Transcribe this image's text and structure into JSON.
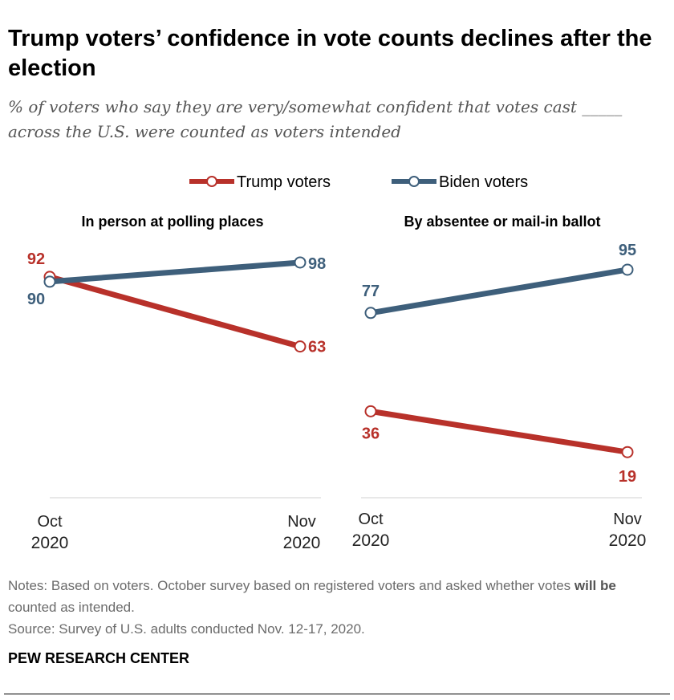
{
  "title": "Trump voters’ confidence in vote counts declines after the election",
  "subtitle": "% of voters who say they are very/somewhat confident that votes cast _____ across the U.S. were counted as voters intended",
  "colors": {
    "trump": "#b8312a",
    "biden": "#3e5f7b"
  },
  "chart_data": [
    {
      "type": "line",
      "title": "In person at polling places",
      "categories": [
        "Oct 2020",
        "Nov 2020"
      ],
      "series": [
        {
          "name": "Trump voters",
          "values": [
            92,
            63
          ]
        },
        {
          "name": "Biden voters",
          "values": [
            90,
            98
          ]
        }
      ],
      "ylim": [
        0,
        100
      ],
      "legend": "top-center",
      "grid": false
    },
    {
      "type": "line",
      "title": "By absentee or mail-in ballot",
      "categories": [
        "Oct 2020",
        "Nov 2020"
      ],
      "series": [
        {
          "name": "Trump voters",
          "values": [
            36,
            19
          ]
        },
        {
          "name": "Biden voters",
          "values": [
            77,
            95
          ]
        }
      ],
      "ylim": [
        0,
        100
      ],
      "legend": "top-center",
      "grid": false
    }
  ],
  "legend": [
    "Trump voters",
    "Biden voters"
  ],
  "xlabels": [
    [
      "Oct",
      "2020"
    ],
    [
      "Nov",
      "2020"
    ]
  ],
  "notes_pre": "Notes: Based on voters. October survey based on registered voters and asked whether votes ",
  "notes_bold": "will be",
  "notes_post": " counted as intended.",
  "source": "Source: Survey of U.S. adults conducted Nov. 12-17, 2020.",
  "brand": "PEW RESEARCH CENTER"
}
